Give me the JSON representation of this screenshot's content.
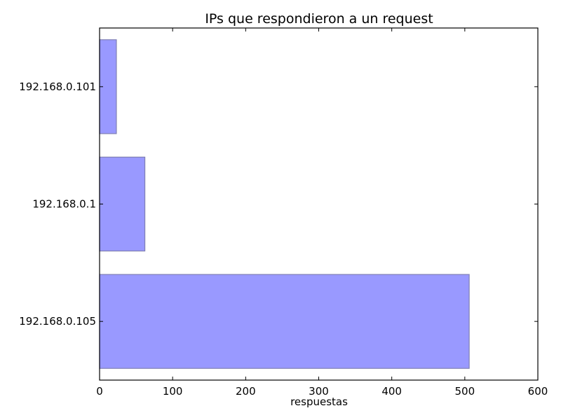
{
  "chart_data": {
    "type": "bar",
    "orientation": "horizontal",
    "title": "IPs que respondieron a un request",
    "xlabel": "respuestas",
    "ylabel": "",
    "categories": [
      "192.168.0.105",
      "192.168.0.1",
      "192.168.0.101"
    ],
    "values": [
      506,
      62,
      23
    ],
    "xlim": [
      0,
      600
    ],
    "xticks": [
      0,
      100,
      200,
      300,
      400,
      500,
      600
    ],
    "grid": false,
    "legend": "none",
    "colors": {
      "bar_fill": "#9999ff",
      "bar_edge": "#7f7fb3"
    }
  }
}
